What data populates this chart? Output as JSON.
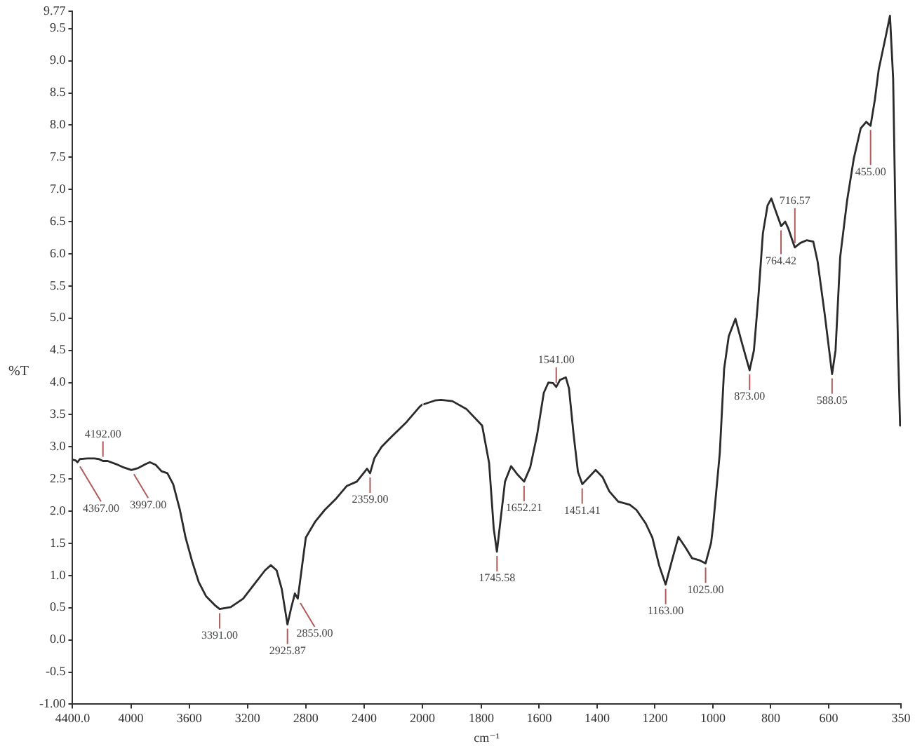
{
  "chart_data": [
    {
      "type": "line",
      "ylabel": "%T",
      "color": "#2b2b2b",
      "x": [
        4400,
        4380,
        4367,
        4350,
        4300,
        4250,
        4220,
        4192,
        4160,
        4100,
        4050,
        3997,
        3950,
        3900,
        3870,
        3830,
        3790,
        3750,
        3710,
        3665,
        3625,
        3580,
        3535,
        3485,
        3420,
        3391,
        3315,
        3230,
        3155,
        3080,
        3040,
        3000,
        2965,
        2926,
        2900,
        2875,
        2855,
        2825,
        2800,
        2735,
        2670,
        2590,
        2520,
        2450,
        2380,
        2359,
        2330,
        2280,
        2215,
        2115,
        2020,
        2000
      ],
      "values": [
        2.8,
        2.79,
        2.76,
        2.81,
        2.82,
        2.82,
        2.81,
        2.78,
        2.78,
        2.73,
        2.68,
        2.64,
        2.67,
        2.73,
        2.76,
        2.72,
        2.62,
        2.59,
        2.42,
        2.03,
        1.59,
        1.22,
        0.9,
        0.68,
        0.53,
        0.48,
        0.51,
        0.64,
        0.86,
        1.08,
        1.16,
        1.08,
        0.79,
        0.24,
        0.5,
        0.72,
        0.64,
        1.16,
        1.59,
        1.84,
        2.02,
        2.2,
        2.39,
        2.46,
        2.66,
        2.59,
        2.82,
        3.0,
        3.15,
        3.37,
        3.62,
        3.66
      ],
      "xlim": [
        4400,
        2000
      ],
      "xticks": [
        {
          "value": 4400,
          "label": "4400.0"
        },
        4000,
        3600,
        3200,
        2800,
        2400,
        2000
      ],
      "ylim": [
        -1,
        9.77
      ],
      "yticks": [
        {
          "value": -1,
          "label": "-1.00"
        },
        -0.5,
        {
          "value": 0,
          "label": "0.0"
        },
        0.5,
        {
          "value": 1,
          "label": "1.0"
        },
        1.5,
        {
          "value": 2,
          "label": "2.0"
        },
        2.5,
        {
          "value": 3,
          "label": "3.0"
        },
        3.5,
        {
          "value": 4,
          "label": "4.0"
        },
        4.5,
        {
          "value": 5,
          "label": "5.0"
        },
        5.5,
        {
          "value": 6,
          "label": "6.0"
        },
        6.5,
        {
          "value": 7,
          "label": "7.0"
        },
        7.5,
        {
          "value": 8,
          "label": "8.0"
        },
        8.5,
        {
          "value": 9,
          "label": "9.0"
        },
        9.5,
        9.77
      ],
      "annotations": [
        {
          "text": "4367.00",
          "x": 4367,
          "y": 2.76
        },
        {
          "text": "4192.00",
          "x": 4192,
          "y": 2.78
        },
        {
          "text": "3997.00",
          "x": 3997,
          "y": 2.64
        },
        {
          "text": "3391.00",
          "x": 3391,
          "y": 0.48
        },
        {
          "text": "2925.87",
          "x": 2925.87,
          "y": 0.24
        },
        {
          "text": "2855.00",
          "x": 2855,
          "y": 0.64
        },
        {
          "text": "2359.00",
          "x": 2359,
          "y": 2.59
        }
      ]
    },
    {
      "type": "line",
      "xlabel": "cm⁻¹",
      "color": "#2b2b2b",
      "x": [
        2000,
        1960,
        1939,
        1900,
        1852,
        1797,
        1773,
        1757,
        1746,
        1733,
        1718,
        1697,
        1675,
        1652,
        1631,
        1607,
        1584,
        1568,
        1552,
        1541,
        1528,
        1508,
        1497,
        1481,
        1466,
        1451,
        1428,
        1405,
        1381,
        1358,
        1327,
        1287,
        1264,
        1232,
        1209,
        1185,
        1163,
        1142,
        1119,
        1095,
        1072,
        1048,
        1025,
        1006,
        1000,
        976,
        961,
        945,
        922,
        901,
        873,
        858,
        842,
        827,
        811,
        798,
        784,
        764,
        750,
        739,
        717,
        697,
        676,
        653,
        638,
        614,
        598,
        588,
        576,
        560,
        536,
        513,
        489,
        470,
        455,
        440,
        427,
        403,
        388,
        377,
        369,
        360,
        353
      ],
      "values": [
        3.66,
        3.72,
        3.73,
        3.71,
        3.59,
        3.33,
        2.75,
        1.73,
        1.37,
        1.88,
        2.46,
        2.7,
        2.57,
        2.46,
        2.68,
        3.19,
        3.84,
        4.0,
        3.99,
        3.93,
        4.04,
        4.08,
        3.91,
        3.19,
        2.61,
        2.42,
        2.53,
        2.64,
        2.53,
        2.31,
        2.15,
        2.1,
        2.02,
        1.81,
        1.59,
        1.15,
        0.86,
        1.22,
        1.6,
        1.44,
        1.27,
        1.24,
        1.19,
        1.51,
        1.73,
        2.9,
        4.21,
        4.72,
        4.99,
        4.64,
        4.19,
        4.5,
        5.37,
        6.32,
        6.75,
        6.86,
        6.68,
        6.43,
        6.5,
        6.39,
        6.1,
        6.17,
        6.21,
        6.19,
        5.88,
        5.08,
        4.5,
        4.13,
        4.5,
        5.95,
        6.83,
        7.48,
        7.95,
        8.05,
        7.99,
        8.4,
        8.86,
        9.37,
        9.7,
        8.72,
        6.53,
        4.5,
        3.33
      ],
      "xlim": [
        2000,
        350
      ],
      "xticks": [
        1800,
        1600,
        1400,
        1200,
        1000,
        800,
        600,
        350
      ],
      "ylim": [
        -1,
        9.77
      ],
      "tick_labels": "x",
      "annotations": [
        {
          "text": "1745.58",
          "x": 1745.58,
          "y": 1.37
        },
        {
          "text": "1652.21",
          "x": 1652.21,
          "y": 2.46
        },
        {
          "text": "1541.00",
          "x": 1541,
          "y": 3.93
        },
        {
          "text": "1451.41",
          "x": 1451.41,
          "y": 2.42
        },
        {
          "text": "1163.00",
          "x": 1163,
          "y": 0.86
        },
        {
          "text": "1025.00",
          "x": 1025,
          "y": 1.19
        },
        {
          "text": "873.00",
          "x": 873,
          "y": 4.19
        },
        {
          "text": "764.42",
          "x": 764.42,
          "y": 6.43
        },
        {
          "text": "716.57",
          "x": 716.57,
          "y": 6.1
        },
        {
          "text": "588.05",
          "x": 588.05,
          "y": 4.13
        },
        {
          "text": "455.00",
          "x": 455,
          "y": 7.99
        }
      ]
    }
  ]
}
